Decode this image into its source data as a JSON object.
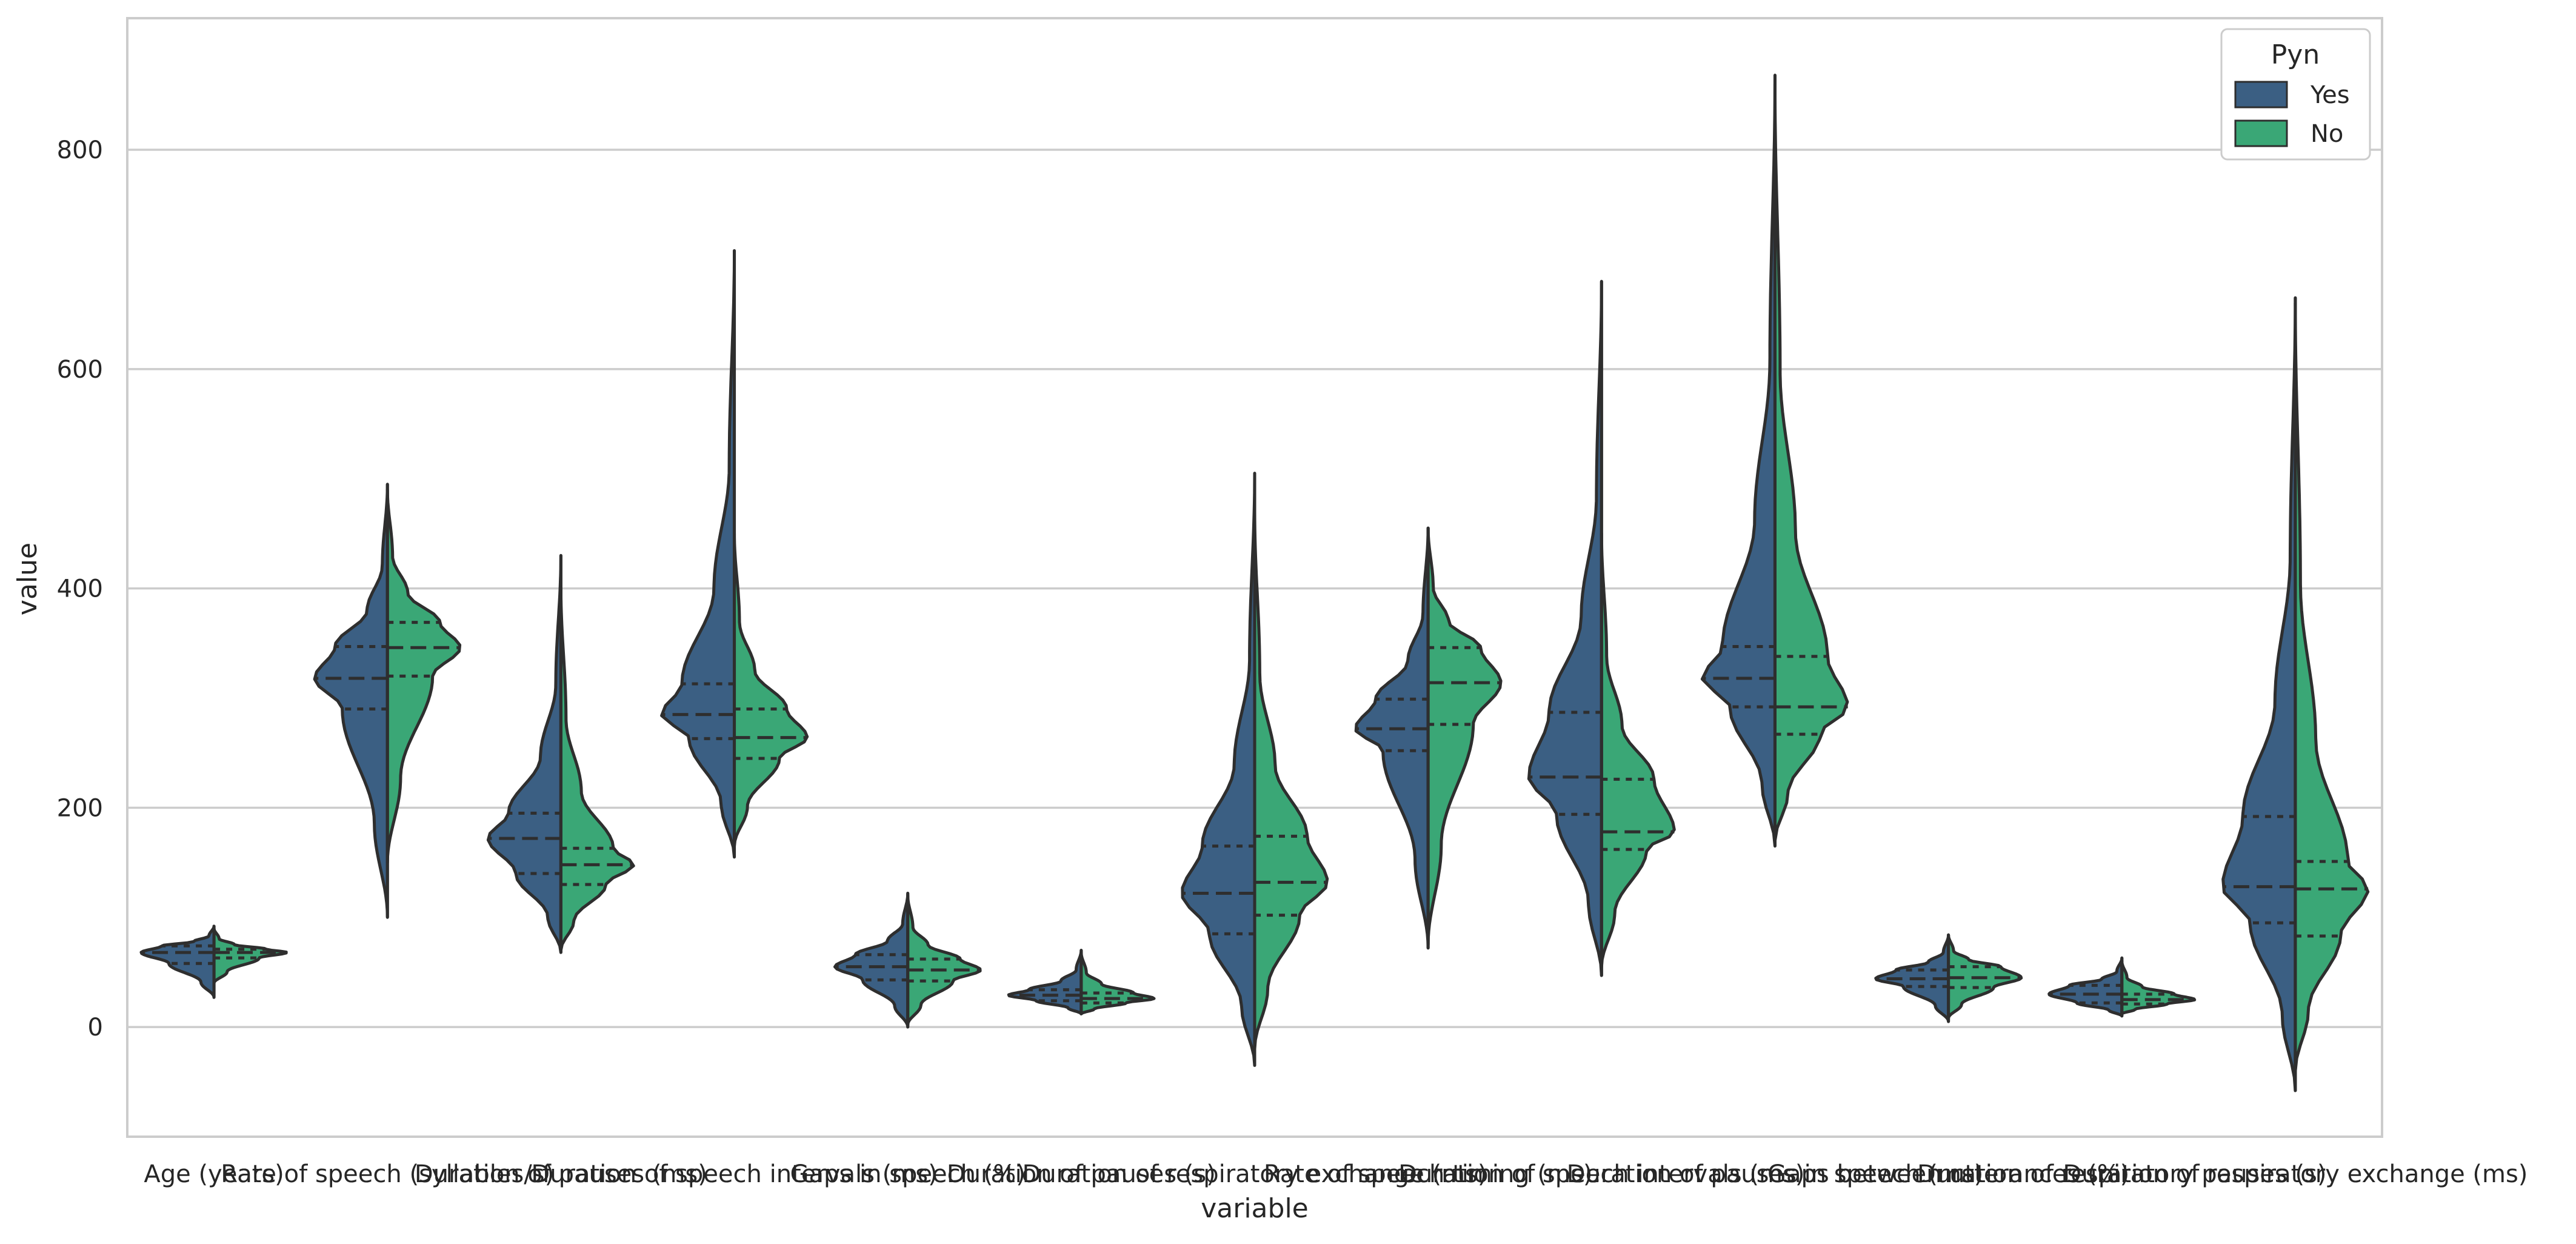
{
  "chart_data": {
    "type": "violin",
    "split": true,
    "inner": "quartile",
    "xlabel": "variable",
    "ylabel": "value",
    "ylim": [
      -100,
      920
    ],
    "yticks": [
      0,
      200,
      400,
      600,
      800
    ],
    "grid": true,
    "legend": {
      "title": "Pyn",
      "placement": "top-right",
      "entries": [
        {
          "name": "Yes",
          "color": "#3b5f83"
        },
        {
          "name": "No",
          "color": "#3aa776"
        }
      ]
    },
    "categories": [
      "Age (years)",
      "Rate of speech (syllables/s)",
      "Duration of pauses (ms)",
      "Duration of speech intervals (ms)",
      "Gaps in speech (%)",
      "Duration of pauses (s)",
      "Duration of respiratory exchange (ms)",
      "Rate of speech timing (ms)",
      "Duration of speech intervals (ms)",
      "Duration of pauses in speech (ms)",
      "Gaps between utterances (%)",
      "Duration of respiratory pauses (s)",
      "Duration of respiratory exchange (ms)"
    ],
    "series": [
      {
        "name": "Yes",
        "color": "#3b5f83",
        "min": [
          27,
          100,
          68,
          155,
          0,
          12,
          -35,
          72,
          47,
          165,
          5,
          10,
          -58
        ],
        "q1": [
          58,
          290,
          140,
          263,
          43,
          24,
          85,
          252,
          194,
          292,
          37,
          22,
          95
        ],
        "median": [
          68,
          318,
          172,
          285,
          55,
          29,
          122,
          272,
          228,
          318,
          44,
          30,
          128
        ],
        "q3": [
          74,
          347,
          195,
          313,
          66,
          34,
          165,
          299,
          287,
          347,
          52,
          38,
          192
        ],
        "max": [
          92,
          495,
          430,
          708,
          122,
          70,
          505,
          455,
          680,
          868,
          84,
          63,
          665
        ]
      },
      {
        "name": "No",
        "color": "#3aa776",
        "min": [
          40,
          150,
          70,
          165,
          2,
          12,
          -20,
          75,
          55,
          170,
          8,
          12,
          -40
        ],
        "q1": [
          63,
          320,
          130,
          245,
          42,
          22,
          102,
          276,
          162,
          267,
          36,
          21,
          83
        ],
        "median": [
          68,
          346,
          148,
          264,
          52,
          26,
          132,
          314,
          178,
          292,
          45,
          25,
          126
        ],
        "q3": [
          71,
          369,
          163,
          290,
          62,
          31,
          174,
          346,
          226,
          338,
          55,
          30,
          151
        ],
        "max": [
          90,
          490,
          400,
          450,
          120,
          68,
          470,
          455,
          450,
          860,
          84,
          60,
          660
        ]
      }
    ]
  }
}
